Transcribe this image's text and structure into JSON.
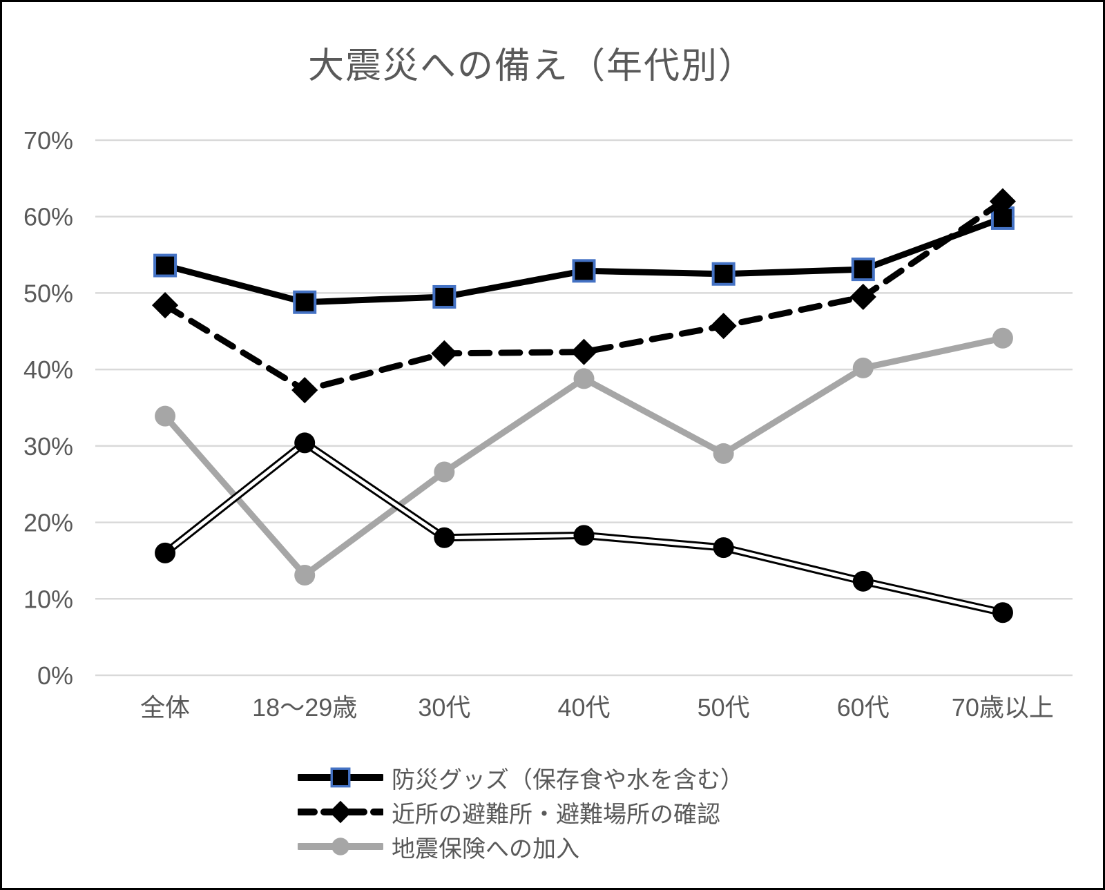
{
  "chart_data": {
    "type": "line",
    "title": "大震災への備え（年代別）",
    "categories": [
      "全体",
      "18〜29歳",
      "30代",
      "40代",
      "50代",
      "60代",
      "70歳以上"
    ],
    "y_axis": {
      "min": 0,
      "max": 70,
      "step": 10,
      "unit": "%",
      "tick_labels": [
        "0%",
        "10%",
        "20%",
        "30%",
        "40%",
        "50%",
        "60%",
        "70%"
      ],
      "grid": true
    },
    "legend_position": "bottom-left",
    "series": [
      {
        "name": "防災グッズ（保存食や水を含む）",
        "values": [
          53.6,
          48.8,
          49.5,
          52.9,
          52.5,
          53.1,
          59.8
        ],
        "line": "solid",
        "line_color": "#000000",
        "marker": "square",
        "marker_fill": "#000000",
        "marker_stroke": "#4472c4",
        "in_legend": true
      },
      {
        "name": "近所の避難所・避難場所の確認",
        "values": [
          48.4,
          37.3,
          42.1,
          42.3,
          45.7,
          49.5,
          62.0
        ],
        "line": "dashed",
        "line_color": "#000000",
        "marker": "diamond",
        "marker_fill": "#000000",
        "marker_stroke": "none",
        "in_legend": true
      },
      {
        "name": "地震保険への加入",
        "values": [
          33.9,
          13.1,
          26.6,
          38.8,
          29.0,
          40.2,
          44.1
        ],
        "line": "solid",
        "line_color": "#a6a6a6",
        "marker": "circle",
        "marker_fill": "#a6a6a6",
        "marker_stroke": "none",
        "in_legend": true
      },
      {
        "name": "",
        "values": [
          16.0,
          30.4,
          18.0,
          18.3,
          16.7,
          12.3,
          8.2
        ],
        "line": "double",
        "line_color": "#000000",
        "marker": "circle",
        "marker_fill": "#000000",
        "marker_stroke": "none",
        "in_legend": false
      }
    ],
    "colors": {
      "title_text": "#595959",
      "axis_text": "#595959",
      "gridline": "#d9d9d9",
      "background": "#ffffff",
      "frame_border": "#000000",
      "accent_blue": "#4472c4",
      "series_gray": "#a6a6a6"
    }
  }
}
